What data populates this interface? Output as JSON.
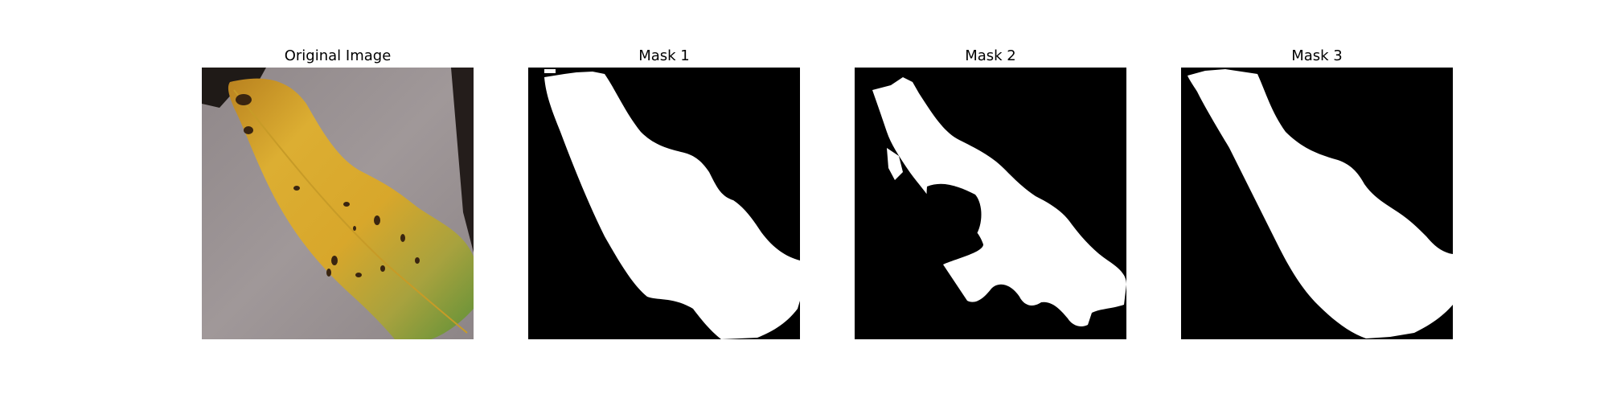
{
  "panels": [
    {
      "title": "Original Image",
      "kind": "photo",
      "subject": "leaf-image"
    },
    {
      "title": "Mask 1",
      "kind": "mask",
      "subject": "leaf-mask"
    },
    {
      "title": "Mask 2",
      "kind": "mask",
      "subject": "leaf-mask"
    },
    {
      "title": "Mask 3",
      "kind": "mask",
      "subject": "leaf-mask"
    }
  ],
  "colors": {
    "background": "#ffffff",
    "mask_background": "#000000",
    "mask_foreground": "#ffffff",
    "photo_background": "#9a9294",
    "leaf_yellow": "#d8a72b",
    "leaf_green": "#6e9a3d"
  }
}
